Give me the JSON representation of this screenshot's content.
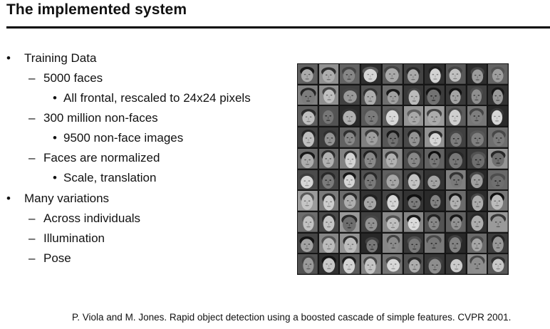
{
  "slide": {
    "title": "The implemented system",
    "bullets": [
      {
        "level": 1,
        "marker": "•",
        "text": "Training Data"
      },
      {
        "level": 2,
        "marker": "–",
        "text": "5000 faces"
      },
      {
        "level": 3,
        "marker": "•",
        "text": "All frontal, rescaled to  24x24 pixels"
      },
      {
        "level": 2,
        "marker": "–",
        "text": "300 million  non-faces"
      },
      {
        "level": 3,
        "marker": "•",
        "text": "9500 non-face images"
      },
      {
        "level": 2,
        "marker": "–",
        "text": "Faces are normalized"
      },
      {
        "level": 3,
        "marker": "•",
        "text": "Scale, translation"
      },
      {
        "level": 1,
        "marker": "•",
        "text": "Many variations"
      },
      {
        "level": 2,
        "marker": "–",
        "text": "Across individuals"
      },
      {
        "level": 2,
        "marker": "–",
        "text": "Illumination"
      },
      {
        "level": 2,
        "marker": "–",
        "text": "Pose"
      }
    ],
    "citation": "P. Viola and M. Jones. Rapid object detection using a boosted cascade of simple features. CVPR 2001.",
    "image": {
      "rows": 10,
      "cols": 10
    }
  }
}
